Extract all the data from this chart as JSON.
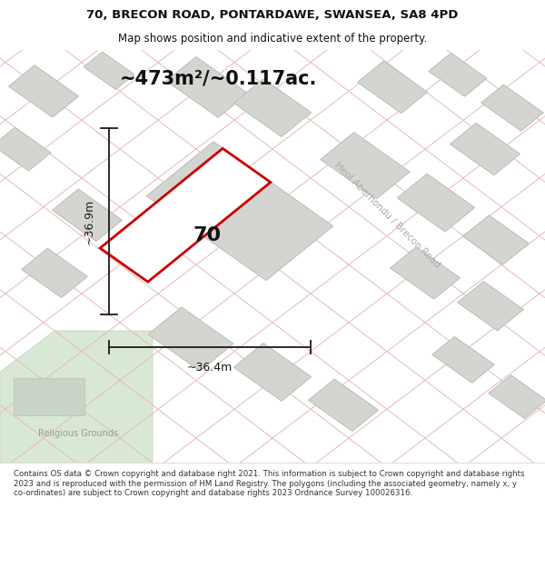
{
  "title_line1": "70, BRECON ROAD, PONTARDAWE, SWANSEA, SA8 4PD",
  "title_line2": "Map shows position and indicative extent of the property.",
  "area_text": "~473m²/~0.117ac.",
  "label_70": "70",
  "dim_horiz": "~36.4m",
  "dim_vert": "~36.9m",
  "road_label": "Heol Aberhondu / Brecon Road",
  "grounds_label": "Religious Grounds",
  "footer_text": "Contains OS data © Crown copyright and database right 2021. This information is subject to Crown copyright and database rights 2023 and is reproduced with the permission of HM Land Registry. The polygons (including the associated geometry, namely x, y co-ordinates) are subject to Crown copyright and database rights 2023 Ordnance Survey 100026316.",
  "bg_color": "#f2f2ee",
  "map_bg": "#eeeeea",
  "building_color": "#d4d4d0",
  "building_edge": "#c0c0bc",
  "road_line": "#e8b8b8",
  "highlight_color": "#cc0000",
  "green_color": "#d8e8d4",
  "green_edge": "#c4d8c0",
  "title_bg": "#ffffff",
  "footer_bg": "#ffffff",
  "dim_color": "#1a1a1a",
  "text_color": "#111111",
  "road_text_color": "#aaaaaa",
  "grounds_text_color": "#999999",
  "title_fontsize": 9.5,
  "subtitle_fontsize": 8.5,
  "area_fontsize": 15,
  "label_fontsize": 16,
  "dim_fontsize": 9,
  "road_fontsize": 7.5,
  "grounds_fontsize": 7,
  "footer_fontsize": 6.2
}
